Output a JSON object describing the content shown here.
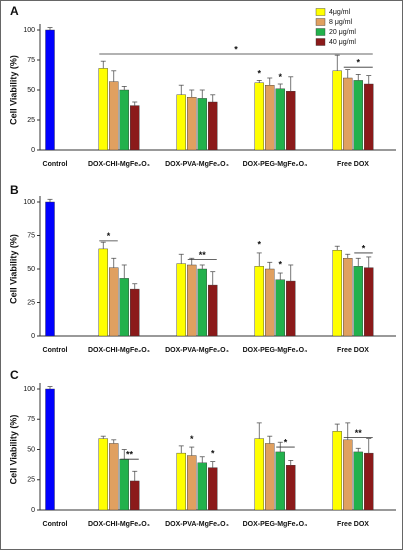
{
  "chart_data": [
    {
      "type": "bar",
      "label": "A",
      "ylabel": "Cell Viability (%)",
      "legend": "upper right",
      "categories": [
        "Control",
        "DOX-CHI-MgFe₂O₄",
        "DOX-PVA-MgFe₂O₄",
        "DOX-PEG-MgFe₂O₄",
        "Free DOX"
      ],
      "control": {
        "value": 100,
        "error": 2,
        "color": "#0000ff"
      },
      "series": [
        {
          "name": "4μg/ml",
          "color": "#ffff00",
          "values": [
            null,
            68,
            46,
            56,
            66
          ],
          "errors": [
            null,
            6,
            8,
            2,
            13
          ]
        },
        {
          "name": "8 μg/ml",
          "color": "#e0a060",
          "values": [
            null,
            57,
            44,
            54,
            60
          ],
          "errors": [
            null,
            9,
            6,
            6,
            7
          ]
        },
        {
          "name": "20 μg/ml",
          "color": "#22b14c",
          "values": [
            null,
            50,
            43,
            51,
            58
          ],
          "errors": [
            null,
            3,
            7,
            4,
            5
          ]
        },
        {
          "name": "40 μg/ml",
          "color": "#8b1a1a",
          "values": [
            null,
            37,
            40,
            49,
            55
          ],
          "errors": [
            null,
            3,
            6,
            12,
            7
          ]
        }
      ],
      "ylim": [
        0,
        100
      ],
      "yticks": [
        0,
        25,
        50,
        75,
        100
      ],
      "annotations": [
        {
          "text": "*",
          "y": 80,
          "from": [
            1,
            0
          ],
          "to": [
            4,
            3
          ]
        },
        {
          "text": "*",
          "y": 60,
          "from": [
            3,
            0
          ],
          "to": [
            3,
            0
          ]
        },
        {
          "text": "*",
          "y": 57,
          "from": [
            3,
            2
          ],
          "to": [
            3,
            2
          ]
        },
        {
          "text": "*",
          "y": 69,
          "from": [
            4,
            1
          ],
          "to": [
            4,
            3
          ]
        }
      ]
    },
    {
      "type": "bar",
      "label": "B",
      "ylabel": "Cell Viability (%)",
      "categories": [
        "Control",
        "DOX-CHI-MgFe₂O₄",
        "DOX-PVA-MgFe₂O₄",
        "DOX-PEG-MgFe₂O₄",
        "Free DOX"
      ],
      "control": {
        "value": 100,
        "error": 2,
        "color": "#0000ff"
      },
      "series": [
        {
          "color": "#ffff00",
          "values": [
            null,
            65,
            54,
            52,
            64
          ],
          "errors": [
            null,
            5,
            7,
            10,
            3
          ]
        },
        {
          "color": "#e0a060",
          "values": [
            null,
            51,
            53,
            50,
            58
          ],
          "errors": [
            null,
            7,
            5,
            5,
            3
          ]
        },
        {
          "color": "#22b14c",
          "values": [
            null,
            43,
            50,
            42,
            52
          ],
          "errors": [
            null,
            10,
            3,
            5,
            6
          ]
        },
        {
          "color": "#8b1a1a",
          "values": [
            null,
            35,
            38,
            41,
            51
          ],
          "errors": [
            null,
            4,
            10,
            12,
            8
          ]
        }
      ],
      "ylim": [
        0,
        100
      ],
      "yticks": [
        0,
        25,
        50,
        75,
        100
      ],
      "annotations": [
        {
          "text": "*",
          "y": 71,
          "from": [
            1,
            0
          ],
          "to": [
            1,
            1
          ]
        },
        {
          "text": "**",
          "y": 57,
          "from": [
            2,
            1
          ],
          "to": [
            2,
            3
          ]
        },
        {
          "text": "*",
          "y": 65,
          "from": [
            3,
            0
          ],
          "to": [
            3,
            0
          ]
        },
        {
          "text": "*",
          "y": 50,
          "from": [
            3,
            2
          ],
          "to": [
            3,
            2
          ]
        },
        {
          "text": "*",
          "y": 62,
          "from": [
            4,
            2
          ],
          "to": [
            4,
            3
          ]
        }
      ]
    },
    {
      "type": "bar",
      "label": "C",
      "ylabel": "Cell Viability (%)",
      "categories": [
        "Control",
        "DOX-CHI-MgFe₂O₄",
        "DOX-PVA-MgFe₂O₄",
        "DOX-PEG-MgFe₂O₄",
        "Free DOX"
      ],
      "control": {
        "value": 100,
        "error": 2,
        "color": "#0000ff"
      },
      "series": [
        {
          "color": "#ffff00",
          "values": [
            null,
            59,
            47,
            59,
            65
          ],
          "errors": [
            null,
            2,
            6,
            13,
            6
          ]
        },
        {
          "color": "#e0a060",
          "values": [
            null,
            55,
            45,
            55,
            58
          ],
          "errors": [
            null,
            3,
            7,
            6,
            14
          ]
        },
        {
          "color": "#22b14c",
          "values": [
            null,
            42,
            39,
            48,
            48
          ],
          "errors": [
            null,
            8,
            5,
            8,
            3
          ]
        },
        {
          "color": "#8b1a1a",
          "values": [
            null,
            24,
            35,
            37,
            47
          ],
          "errors": [
            null,
            8,
            5,
            4,
            12
          ]
        }
      ],
      "ylim": [
        0,
        100
      ],
      "yticks": [
        0,
        25,
        50,
        75,
        100
      ],
      "annotations": [
        {
          "text": "**",
          "y": 42,
          "from": [
            1,
            2
          ],
          "to": [
            1,
            3
          ]
        },
        {
          "text": "*",
          "y": 55,
          "from": [
            2,
            1
          ],
          "to": [
            2,
            1
          ]
        },
        {
          "text": "*",
          "y": 43,
          "from": [
            2,
            3
          ],
          "to": [
            2,
            3
          ],
          "color": "#c00000"
        },
        {
          "text": "*",
          "y": 52,
          "from": [
            3,
            2
          ],
          "to": [
            3,
            3
          ]
        },
        {
          "text": "**",
          "y": 60,
          "from": [
            4,
            1
          ],
          "to": [
            4,
            3
          ]
        }
      ]
    }
  ]
}
